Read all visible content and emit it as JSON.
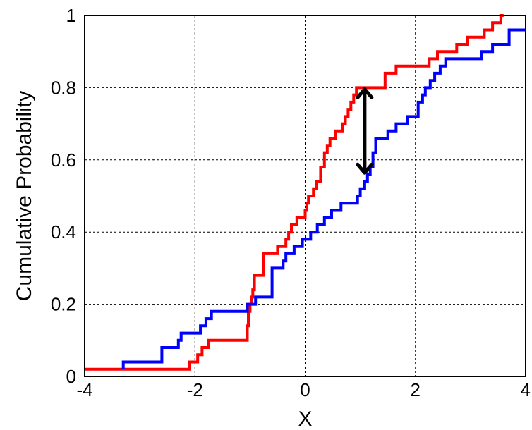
{
  "chart_data": {
    "type": "line",
    "subtype": "empirical-cdf-step",
    "title": "",
    "xlabel": "X",
    "ylabel": "Cumulative Probability",
    "xlim": [
      -4,
      4
    ],
    "ylim": [
      0,
      1
    ],
    "xticks": [
      -4,
      -2,
      0,
      2,
      4
    ],
    "xtick_labels": [
      "-4",
      "-2",
      "0",
      "2",
      "4"
    ],
    "yticks": [
      0,
      0.2,
      0.4,
      0.6,
      0.8,
      1
    ],
    "ytick_labels": [
      "0",
      "0.2",
      "0.4",
      "0.6",
      "0.8",
      "1"
    ],
    "grid": true,
    "legend": "none",
    "series": [
      {
        "color": "#ff0000",
        "points": [
          [
            -4.0,
            0.02
          ],
          [
            -2.1,
            0.02
          ],
          [
            -2.1,
            0.04
          ],
          [
            -1.95,
            0.04
          ],
          [
            -1.95,
            0.06
          ],
          [
            -1.87,
            0.06
          ],
          [
            -1.87,
            0.08
          ],
          [
            -1.75,
            0.08
          ],
          [
            -1.75,
            0.1
          ],
          [
            -1.05,
            0.1
          ],
          [
            -1.05,
            0.14
          ],
          [
            -1.03,
            0.14
          ],
          [
            -1.03,
            0.18
          ],
          [
            -1.0,
            0.18
          ],
          [
            -1.0,
            0.2
          ],
          [
            -0.97,
            0.2
          ],
          [
            -0.97,
            0.22
          ],
          [
            -0.95,
            0.22
          ],
          [
            -0.95,
            0.24
          ],
          [
            -0.92,
            0.24
          ],
          [
            -0.92,
            0.28
          ],
          [
            -0.75,
            0.28
          ],
          [
            -0.75,
            0.34
          ],
          [
            -0.5,
            0.34
          ],
          [
            -0.5,
            0.36
          ],
          [
            -0.35,
            0.36
          ],
          [
            -0.35,
            0.38
          ],
          [
            -0.3,
            0.38
          ],
          [
            -0.3,
            0.4
          ],
          [
            -0.25,
            0.4
          ],
          [
            -0.25,
            0.42
          ],
          [
            -0.15,
            0.42
          ],
          [
            -0.15,
            0.44
          ],
          [
            0.0,
            0.44
          ],
          [
            0.0,
            0.46
          ],
          [
            0.03,
            0.46
          ],
          [
            0.03,
            0.48
          ],
          [
            0.06,
            0.48
          ],
          [
            0.06,
            0.5
          ],
          [
            0.15,
            0.5
          ],
          [
            0.15,
            0.52
          ],
          [
            0.2,
            0.52
          ],
          [
            0.2,
            0.54
          ],
          [
            0.28,
            0.54
          ],
          [
            0.28,
            0.58
          ],
          [
            0.35,
            0.58
          ],
          [
            0.35,
            0.62
          ],
          [
            0.4,
            0.62
          ],
          [
            0.4,
            0.64
          ],
          [
            0.45,
            0.64
          ],
          [
            0.45,
            0.66
          ],
          [
            0.55,
            0.66
          ],
          [
            0.55,
            0.68
          ],
          [
            0.68,
            0.68
          ],
          [
            0.68,
            0.7
          ],
          [
            0.73,
            0.7
          ],
          [
            0.73,
            0.72
          ],
          [
            0.78,
            0.72
          ],
          [
            0.78,
            0.74
          ],
          [
            0.83,
            0.74
          ],
          [
            0.83,
            0.76
          ],
          [
            0.88,
            0.76
          ],
          [
            0.88,
            0.78
          ],
          [
            0.93,
            0.78
          ],
          [
            0.93,
            0.8
          ],
          [
            1.45,
            0.8
          ],
          [
            1.45,
            0.84
          ],
          [
            1.65,
            0.84
          ],
          [
            1.65,
            0.86
          ],
          [
            2.25,
            0.86
          ],
          [
            2.25,
            0.88
          ],
          [
            2.4,
            0.88
          ],
          [
            2.4,
            0.9
          ],
          [
            2.75,
            0.9
          ],
          [
            2.75,
            0.92
          ],
          [
            2.95,
            0.92
          ],
          [
            2.95,
            0.94
          ],
          [
            3.25,
            0.94
          ],
          [
            3.25,
            0.96
          ],
          [
            3.4,
            0.96
          ],
          [
            3.4,
            0.98
          ],
          [
            3.55,
            0.98
          ],
          [
            3.55,
            1.0
          ],
          [
            3.6,
            1.0
          ]
        ]
      },
      {
        "color": "#0000ff",
        "points": [
          [
            -3.3,
            0.02
          ],
          [
            -3.3,
            0.04
          ],
          [
            -2.6,
            0.04
          ],
          [
            -2.6,
            0.08
          ],
          [
            -2.3,
            0.08
          ],
          [
            -2.3,
            0.1
          ],
          [
            -2.25,
            0.1
          ],
          [
            -2.25,
            0.12
          ],
          [
            -1.9,
            0.12
          ],
          [
            -1.9,
            0.14
          ],
          [
            -1.8,
            0.14
          ],
          [
            -1.8,
            0.16
          ],
          [
            -1.7,
            0.16
          ],
          [
            -1.7,
            0.18
          ],
          [
            -1.05,
            0.18
          ],
          [
            -1.05,
            0.2
          ],
          [
            -0.9,
            0.2
          ],
          [
            -0.9,
            0.22
          ],
          [
            -0.6,
            0.22
          ],
          [
            -0.6,
            0.3
          ],
          [
            -0.4,
            0.3
          ],
          [
            -0.4,
            0.32
          ],
          [
            -0.35,
            0.32
          ],
          [
            -0.35,
            0.34
          ],
          [
            -0.2,
            0.34
          ],
          [
            -0.2,
            0.36
          ],
          [
            -0.05,
            0.36
          ],
          [
            -0.05,
            0.38
          ],
          [
            0.1,
            0.38
          ],
          [
            0.1,
            0.4
          ],
          [
            0.22,
            0.4
          ],
          [
            0.22,
            0.42
          ],
          [
            0.35,
            0.42
          ],
          [
            0.35,
            0.44
          ],
          [
            0.48,
            0.44
          ],
          [
            0.48,
            0.46
          ],
          [
            0.65,
            0.46
          ],
          [
            0.65,
            0.48
          ],
          [
            0.95,
            0.48
          ],
          [
            0.95,
            0.5
          ],
          [
            1.0,
            0.5
          ],
          [
            1.0,
            0.52
          ],
          [
            1.08,
            0.52
          ],
          [
            1.08,
            0.54
          ],
          [
            1.13,
            0.54
          ],
          [
            1.13,
            0.56
          ],
          [
            1.18,
            0.56
          ],
          [
            1.18,
            0.58
          ],
          [
            1.23,
            0.58
          ],
          [
            1.23,
            0.62
          ],
          [
            1.28,
            0.62
          ],
          [
            1.28,
            0.66
          ],
          [
            1.5,
            0.66
          ],
          [
            1.5,
            0.68
          ],
          [
            1.65,
            0.68
          ],
          [
            1.65,
            0.7
          ],
          [
            1.85,
            0.7
          ],
          [
            1.85,
            0.72
          ],
          [
            2.05,
            0.72
          ],
          [
            2.05,
            0.76
          ],
          [
            2.13,
            0.76
          ],
          [
            2.13,
            0.78
          ],
          [
            2.18,
            0.78
          ],
          [
            2.18,
            0.8
          ],
          [
            2.27,
            0.8
          ],
          [
            2.27,
            0.82
          ],
          [
            2.35,
            0.82
          ],
          [
            2.35,
            0.84
          ],
          [
            2.45,
            0.84
          ],
          [
            2.45,
            0.86
          ],
          [
            2.55,
            0.86
          ],
          [
            2.55,
            0.88
          ],
          [
            3.2,
            0.88
          ],
          [
            3.2,
            0.9
          ],
          [
            3.4,
            0.9
          ],
          [
            3.4,
            0.92
          ],
          [
            3.7,
            0.92
          ],
          [
            3.7,
            0.96
          ],
          [
            4.0,
            0.96
          ]
        ]
      }
    ],
    "annotations": [
      {
        "type": "double-arrow",
        "x": 1.08,
        "y_from": 0.56,
        "y_to": 0.8,
        "color": "#000000"
      }
    ]
  }
}
